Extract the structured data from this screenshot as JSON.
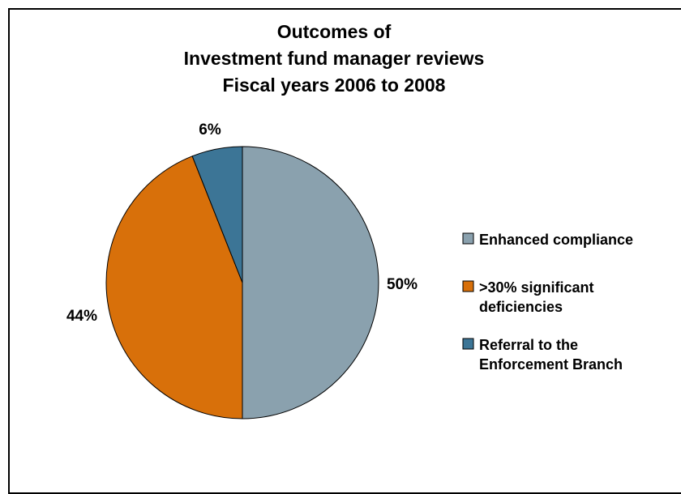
{
  "chart_data": {
    "type": "pie",
    "title": [
      "Outcomes of",
      "Investment fund manager reviews",
      "Fiscal years 2006 to 2008"
    ],
    "series": [
      {
        "label": [
          "Enhanced compliance"
        ],
        "value": 50,
        "display": "50%",
        "color": "#8aa1ae"
      },
      {
        "label": [
          ">30% significant",
          "deficiencies"
        ],
        "value": 44,
        "display": "44%",
        "color": "#d8700a"
      },
      {
        "label": [
          "Referral to the",
          "Enforcement Branch"
        ],
        "value": 6,
        "display": "6%",
        "color": "#3c7596"
      }
    ],
    "start": "top",
    "direction": "clockwise",
    "legend_position": "right"
  }
}
